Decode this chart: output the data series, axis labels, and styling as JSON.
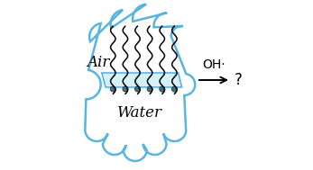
{
  "cloud_color": "#5ab4e0",
  "cloud_fill": "white",
  "water_fill": "#d6eff9",
  "water_edge": "#5ab4e0",
  "molecule_head_color": "#4a6e7e",
  "arrow_color": "black",
  "air_text": "Air",
  "water_text": "Water",
  "oh_text": "OH·",
  "q_text": "?",
  "text_color": "black",
  "cloud_lw": 1.8,
  "n_molecules": 6,
  "figsize": [
    3.47,
    1.89
  ],
  "dpi": 100
}
